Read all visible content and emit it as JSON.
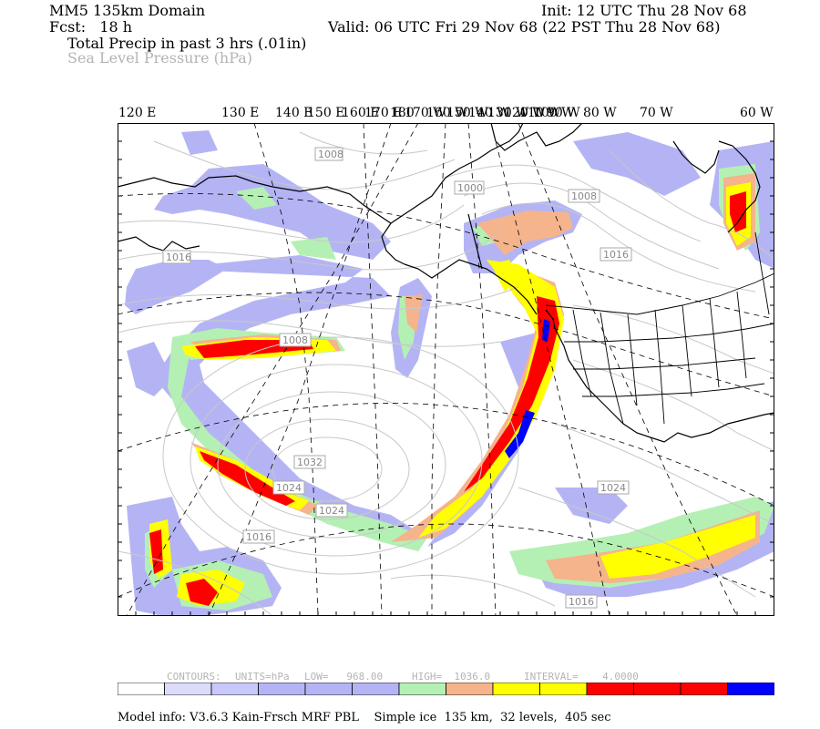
{
  "header": {
    "domain": "MM5 135km Domain",
    "init": "Init: 12 UTC Thu 28 Nov 68",
    "fcst": "Fcst:   18 h",
    "valid": "Valid: 06 UTC Fri 29 Nov 68 (22 PST Thu 28 Nov 68)",
    "field1": "Total Precip in past 3 hrs (.01in)",
    "field2": "Sea Level Pressure (hPa)"
  },
  "map": {
    "lon_labels": [
      "120 E",
      "130 E",
      "140 E",
      "150 E",
      "160 E",
      "170 E",
      "180",
      "170 W",
      "160 W",
      "150 W",
      "140 W",
      "130 W",
      "120 W",
      "110 W",
      "100 W",
      "90 W",
      "80 W",
      "70 W",
      "60 W"
    ],
    "pressure_labels": [
      "1008",
      "1000",
      "1008",
      "1016",
      "1016",
      "1008",
      "1032",
      "1024",
      "1024",
      "1016",
      "1024",
      "1016"
    ],
    "colors": {
      "lavender": "#b4b4f5",
      "lightgreen": "#b4f0b4",
      "tan": "#f5b48c",
      "yellow": "#ffff00",
      "red": "#ff0000",
      "blue": "#0000ff"
    }
  },
  "contours_info": {
    "label": "CONTOURS:",
    "units": "UNITS=hPa",
    "low": "LOW=   968.00",
    "high": "HIGH=  1036.0",
    "interval": "INTERVAL=    4.0000"
  },
  "colorbar": [
    "#ffffff",
    "#dcdcfa",
    "#c8c8fa",
    "#b4b4f5",
    "#b4b4f5",
    "#b4b4f5",
    "#b4f0b4",
    "#f5b48c",
    "#ffff00",
    "#ffff00",
    "#ff0000",
    "#ff0000",
    "#ff0000",
    "#0000ff"
  ],
  "footer": "Model info: V3.6.3 Kain-Frsch MRF PBL    Simple ice  135 km,  32 levels,  405 sec"
}
